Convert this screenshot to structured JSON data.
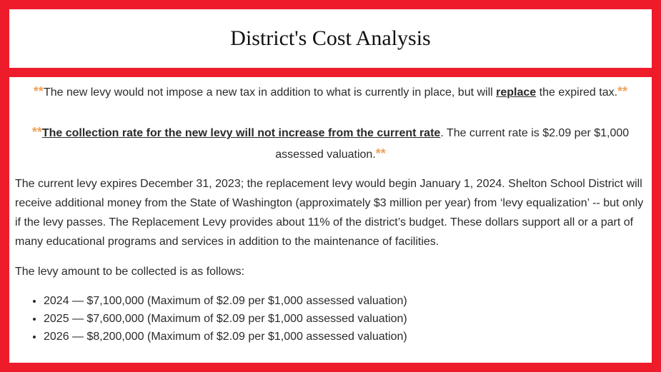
{
  "title": "District's Cost Analysis",
  "note1": {
    "star_open": "**",
    "text_before": "The new levy would not impose a new tax in addition to what is currently in place, but will ",
    "emphasis": "replace",
    "text_after": " the expired tax.",
    "star_close": "**"
  },
  "note2": {
    "star_open": "**",
    "emphasis": "The collection rate for the new levy will not increase from the current rate",
    "text_after": ". The current rate is $2.09 per $1,000 assessed valuation.",
    "star_close": "**"
  },
  "paragraph": "The current levy expires December 31, 2023; the replacement levy would begin January 1, 2024. Shelton School District will receive additional money from the State of Washington (approximately $3 million per year) from ‘levy equalization’ -- but only if the levy passes. The Replacement Levy provides about 11% of the district’s budget. These dollars support all or a part of many educational programs and services in addition to the maintenance of facilities.",
  "levy_intro": "The levy amount to be collected is as follows:",
  "levy_items": [
    "2024 — $7,100,000 (Maximum of $2.09 per $1,000 assessed valuation)",
    "2025 — $7,600,000 (Maximum of $2.09 per $1,000 assessed valuation)",
    "2026 — $8,200,000 (Maximum of $2.09 per $1,000 assessed valuation)"
  ],
  "colors": {
    "frame": "#ee1c2b",
    "star": "#f0a15c"
  }
}
